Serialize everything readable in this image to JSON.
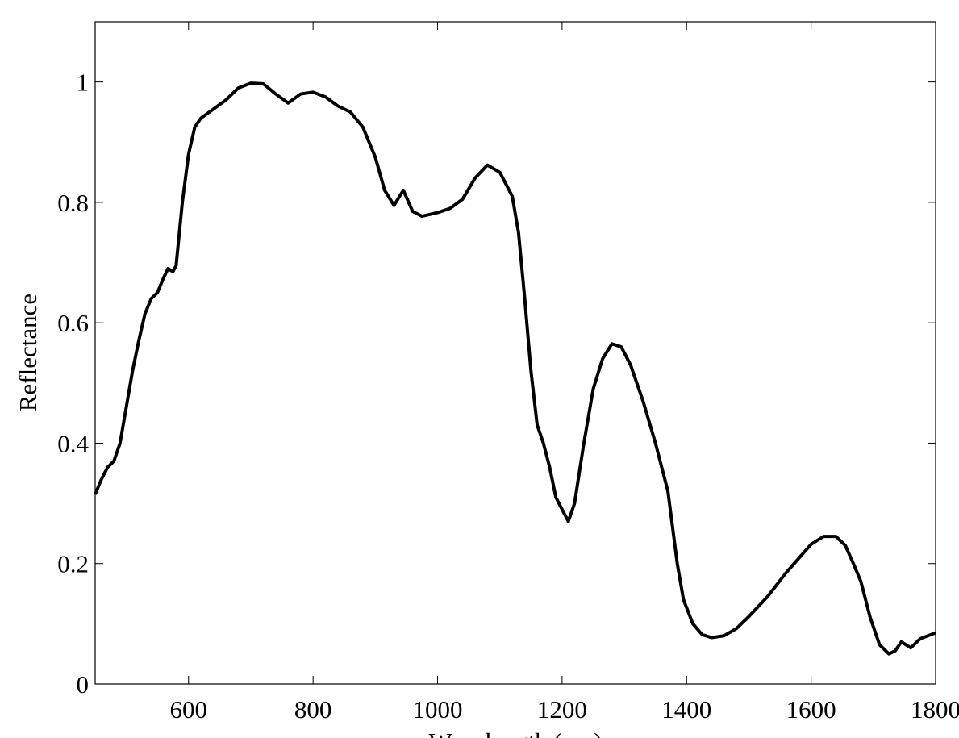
{
  "chart_data": {
    "type": "line",
    "xlabel": "Wavelength (nm)",
    "ylabel": "Reflectance",
    "x": [
      450,
      460,
      470,
      480,
      490,
      500,
      510,
      520,
      530,
      540,
      550,
      560,
      567,
      575,
      580,
      590,
      600,
      610,
      620,
      640,
      660,
      680,
      700,
      720,
      740,
      760,
      780,
      800,
      820,
      840,
      860,
      880,
      900,
      915,
      930,
      945,
      960,
      975,
      1000,
      1020,
      1040,
      1060,
      1080,
      1100,
      1120,
      1130,
      1140,
      1150,
      1160,
      1170,
      1180,
      1190,
      1210,
      1220,
      1235,
      1250,
      1265,
      1280,
      1295,
      1310,
      1330,
      1350,
      1370,
      1385,
      1395,
      1410,
      1425,
      1440,
      1460,
      1480,
      1500,
      1530,
      1560,
      1600,
      1620,
      1640,
      1655,
      1670,
      1680,
      1695,
      1710,
      1725,
      1735,
      1745,
      1760,
      1775,
      1800
    ],
    "series": [
      {
        "color": "#000000",
        "values": [
          0.315,
          0.34,
          0.36,
          0.37,
          0.4,
          0.46,
          0.52,
          0.57,
          0.615,
          0.64,
          0.65,
          0.675,
          0.69,
          0.685,
          0.695,
          0.8,
          0.88,
          0.925,
          0.94,
          0.955,
          0.97,
          0.99,
          0.998,
          0.997,
          0.98,
          0.965,
          0.98,
          0.983,
          0.975,
          0.96,
          0.95,
          0.925,
          0.875,
          0.82,
          0.795,
          0.82,
          0.785,
          0.777,
          0.783,
          0.79,
          0.805,
          0.84,
          0.862,
          0.85,
          0.81,
          0.75,
          0.64,
          0.52,
          0.43,
          0.4,
          0.36,
          0.31,
          0.27,
          0.3,
          0.4,
          0.49,
          0.54,
          0.565,
          0.56,
          0.53,
          0.47,
          0.4,
          0.32,
          0.2,
          0.14,
          0.1,
          0.082,
          0.077,
          0.08,
          0.092,
          0.112,
          0.145,
          0.185,
          0.232,
          0.245,
          0.245,
          0.23,
          0.195,
          0.17,
          0.11,
          0.065,
          0.05,
          0.055,
          0.07,
          0.06,
          0.075,
          0.085
        ]
      }
    ],
    "xlim": [
      450,
      1800
    ],
    "xticks": [
      600,
      800,
      1000,
      1200,
      1400,
      1600,
      1800
    ],
    "ylim": [
      0,
      1.1
    ],
    "yticks": [
      0,
      0.2,
      0.4,
      0.6,
      0.8,
      1
    ]
  }
}
